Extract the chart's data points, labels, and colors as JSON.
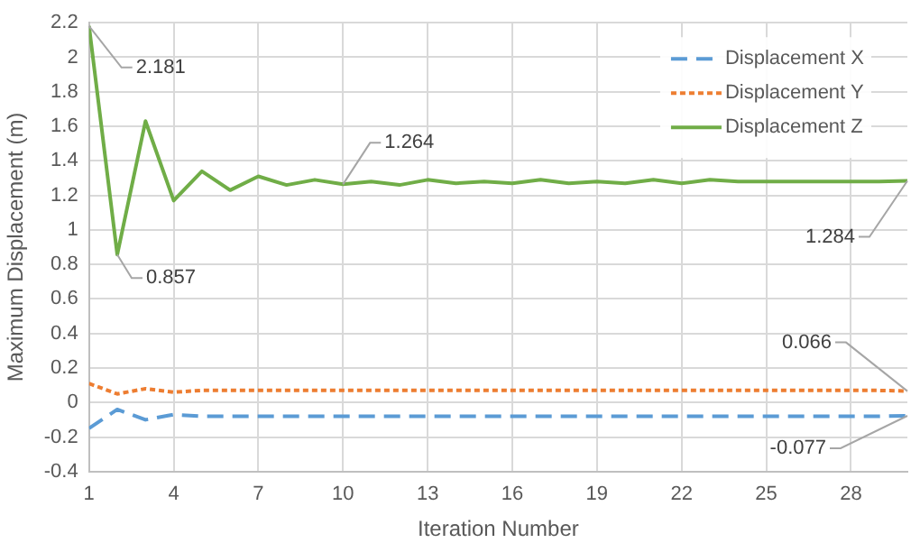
{
  "chart_data": {
    "type": "line",
    "xlabel": "Iteration Number",
    "ylabel": "Maximum Displacement (m)",
    "x": [
      1,
      2,
      3,
      4,
      5,
      6,
      7,
      8,
      9,
      10,
      11,
      12,
      13,
      14,
      15,
      16,
      17,
      18,
      19,
      20,
      21,
      22,
      23,
      24,
      25,
      26,
      27,
      28,
      29,
      30
    ],
    "series": [
      {
        "name": "Displacement X",
        "color": "#5b9bd5",
        "line_style": "dashed",
        "values": [
          -0.15,
          -0.04,
          -0.1,
          -0.07,
          -0.08,
          -0.08,
          -0.08,
          -0.08,
          -0.08,
          -0.08,
          -0.08,
          -0.08,
          -0.08,
          -0.08,
          -0.08,
          -0.08,
          -0.08,
          -0.08,
          -0.08,
          -0.08,
          -0.08,
          -0.08,
          -0.08,
          -0.08,
          -0.08,
          -0.08,
          -0.08,
          -0.08,
          -0.08,
          -0.077
        ]
      },
      {
        "name": "Displacement Y",
        "color": "#ed7d31",
        "line_style": "dotted",
        "values": [
          0.11,
          0.05,
          0.08,
          0.06,
          0.07,
          0.07,
          0.07,
          0.07,
          0.07,
          0.07,
          0.07,
          0.07,
          0.07,
          0.07,
          0.07,
          0.07,
          0.07,
          0.07,
          0.07,
          0.07,
          0.07,
          0.07,
          0.07,
          0.07,
          0.07,
          0.07,
          0.07,
          0.07,
          0.07,
          0.066
        ]
      },
      {
        "name": "Displacement Z",
        "color": "#70ad47",
        "line_style": "solid",
        "values": [
          2.181,
          0.857,
          1.63,
          1.17,
          1.34,
          1.23,
          1.31,
          1.26,
          1.29,
          1.264,
          1.28,
          1.26,
          1.29,
          1.27,
          1.28,
          1.27,
          1.29,
          1.27,
          1.28,
          1.27,
          1.29,
          1.27,
          1.29,
          1.28,
          1.28,
          1.28,
          1.28,
          1.28,
          1.28,
          1.284
        ]
      }
    ],
    "xlim": [
      1,
      30
    ],
    "xticks": [
      1,
      4,
      7,
      10,
      13,
      16,
      19,
      22,
      25,
      28
    ],
    "ylim": [
      -0.4,
      2.2
    ],
    "yticks": [
      -0.4,
      -0.2,
      0,
      0.2,
      0.4,
      0.6,
      0.8,
      1,
      1.2,
      1.4,
      1.6,
      1.8,
      2,
      2.2
    ],
    "grid": true,
    "legend": "top right",
    "marker": "none",
    "annotations": [
      {
        "text": "2.181",
        "x": 1,
        "y": 2.181
      },
      {
        "text": "0.857",
        "x": 2,
        "y": 0.857
      },
      {
        "text": "1.264",
        "x": 10,
        "y": 1.264
      },
      {
        "text": "1.284",
        "x": 30,
        "y": 1.284
      },
      {
        "text": "0.066",
        "x": 30,
        "y": 0.066
      },
      {
        "text": "-0.077",
        "x": 30,
        "y": -0.077
      }
    ]
  }
}
